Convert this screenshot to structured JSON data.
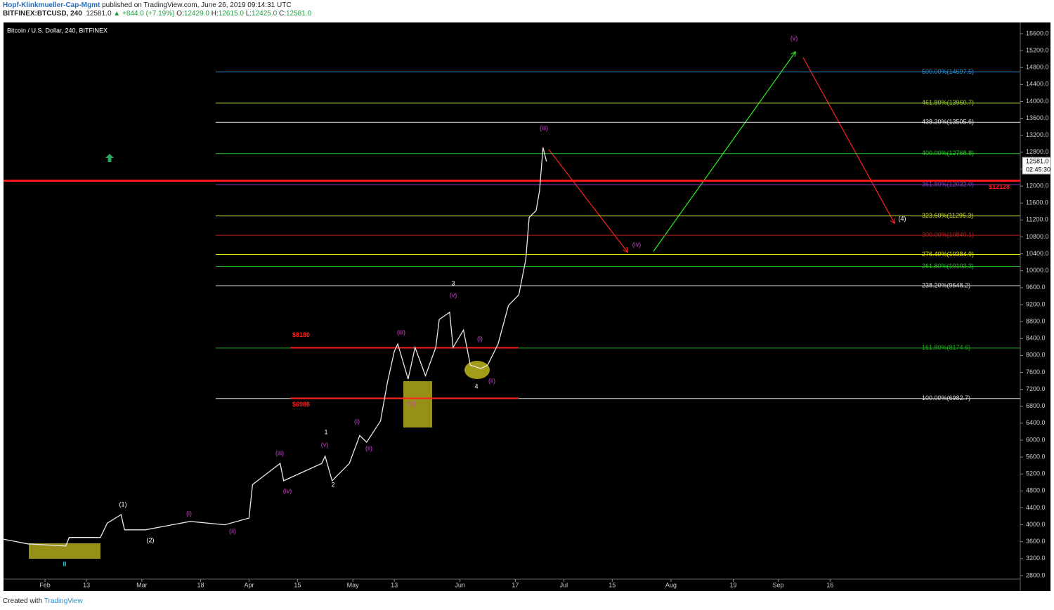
{
  "header": {
    "author": "Hopf-Klinkmueller-Cap-Mgmt",
    "published": "published on TradingView.com, June 26, 2019 09:14:31 UTC",
    "symbol": "BITFINEX:BTCUSD, 240",
    "last": "12581.0",
    "change": "▲ +844.0 (+7.19%)",
    "ohlc": [
      {
        "label": "O:",
        "value": "12429.0"
      },
      {
        "label": "H:",
        "value": "12615.0"
      },
      {
        "label": "L:",
        "value": "12425.0"
      },
      {
        "label": "C:",
        "value": "12581.0"
      }
    ]
  },
  "footer": {
    "created": "Created with",
    "brand": "TradingView"
  },
  "chart_data": {
    "type": "line",
    "title": "Bitcoin / U.S. Dollar, 240, BITFINEX",
    "color": "#e8e8e8",
    "x": [
      "01-20",
      "01-27",
      "02-07",
      "02-08",
      "02-17",
      "02-19",
      "02-23",
      "02-24",
      "03-02",
      "03-15",
      "03-25",
      "04-01",
      "04-02",
      "04-10",
      "04-11",
      "04-22",
      "04-23",
      "04-25",
      "04-30",
      "05-03",
      "05-05",
      "05-09",
      "05-11",
      "05-13",
      "05-14",
      "05-17",
      "05-19",
      "05-22",
      "05-25",
      "05-26",
      "05-29",
      "05-30",
      "06-02",
      "06-04",
      "06-07",
      "06-09",
      "06-12",
      "06-15",
      "06-18",
      "06-20",
      "06-21",
      "06-23",
      "06-24",
      "06-25",
      "06-26"
    ],
    "values": [
      3660,
      3550,
      3500,
      3700,
      3700,
      4040,
      4240,
      3880,
      3880,
      4080,
      4000,
      4160,
      4950,
      5450,
      5040,
      5450,
      5620,
      5040,
      5450,
      6110,
      5950,
      6450,
      7360,
      8100,
      8270,
      7440,
      8190,
      7520,
      8190,
      8850,
      9020,
      8190,
      8600,
      7770,
      7690,
      7770,
      8270,
      9180,
      9430,
      10260,
      11260,
      11420,
      11900,
      12910,
      12581
    ],
    "xlim": [
      "01-20",
      "11-10"
    ],
    "ylim": [
      2435,
      15865
    ],
    "xticks": [
      {
        "value": "02-01",
        "label": "Feb"
      },
      {
        "value": "02-13",
        "label": "13"
      },
      {
        "value": "03-01",
        "label": "Mar"
      },
      {
        "value": "03-18",
        "label": "18"
      },
      {
        "value": "04-01",
        "label": "Apr"
      },
      {
        "value": "04-15",
        "label": "15"
      },
      {
        "value": "05-01",
        "label": "May"
      },
      {
        "value": "05-13",
        "label": "13"
      },
      {
        "value": "06-01",
        "label": "Jun"
      },
      {
        "value": "06-17",
        "label": "17"
      },
      {
        "value": "07-01",
        "label": "Jul"
      },
      {
        "value": "07-15",
        "label": "15"
      },
      {
        "value": "08-01",
        "label": "Aug"
      },
      {
        "value": "08-19",
        "label": "19"
      },
      {
        "value": "09-01",
        "label": "Sep"
      },
      {
        "value": "09-16",
        "label": "16"
      }
    ],
    "yticks": [
      {
        "value": 2800,
        "label": "2800.0"
      },
      {
        "value": 3200,
        "label": "3200.0"
      },
      {
        "value": 3600,
        "label": "3600.0"
      },
      {
        "value": 4000,
        "label": "4000.0"
      },
      {
        "value": 4400,
        "label": "4400.0"
      },
      {
        "value": 4800,
        "label": "4800.0"
      },
      {
        "value": 5200,
        "label": "5200.0"
      },
      {
        "value": 5600,
        "label": "5600.0"
      },
      {
        "value": 6000,
        "label": "6000.0"
      },
      {
        "value": 6400,
        "label": "6400.0"
      },
      {
        "value": 6800,
        "label": "6800.0"
      },
      {
        "value": 7200,
        "label": "7200.0"
      },
      {
        "value": 7600,
        "label": "7600.0"
      },
      {
        "value": 8000,
        "label": "8000.0"
      },
      {
        "value": 8400,
        "label": "8400.0"
      },
      {
        "value": 8800,
        "label": "8800.0"
      },
      {
        "value": 9200,
        "label": "9200.0"
      },
      {
        "value": 9600,
        "label": "9600.0"
      },
      {
        "value": 10000,
        "label": "10000.0"
      },
      {
        "value": 10400,
        "label": "10400.0"
      },
      {
        "value": 10800,
        "label": "10800.0"
      },
      {
        "value": 11200,
        "label": "11200.0"
      },
      {
        "value": 11600,
        "label": "11600.0"
      },
      {
        "value": 12000,
        "label": "12000.0"
      },
      {
        "value": 12400,
        "label": "12400.0"
      },
      {
        "value": 12800,
        "label": "12800.0"
      },
      {
        "value": 13200,
        "label": "13200.0"
      },
      {
        "value": 13600,
        "label": "13600.0"
      },
      {
        "value": 14000,
        "label": "14000.0"
      },
      {
        "value": 14400,
        "label": "14400.0"
      },
      {
        "value": 14800,
        "label": "14800.0"
      },
      {
        "value": 15200,
        "label": "15200.0"
      },
      {
        "value": 15600,
        "label": "15600.0"
      }
    ],
    "fib_levels": [
      {
        "value": 14697.5,
        "label": "500.00%(14697.5)",
        "color": "#2a8fd0"
      },
      {
        "value": 13960.7,
        "label": "461.80%(13960.7)",
        "color": "#9acd32"
      },
      {
        "value": 13505.6,
        "label": "438.20%(13505.6)",
        "color": "#e0e0e0"
      },
      {
        "value": 12768.8,
        "label": "400.00%(12768.8)",
        "color": "#22cc22"
      },
      {
        "value": 12032.0,
        "label": "361.80%(12032.0)",
        "color": "#7a3fc0"
      },
      {
        "value": 11295.3,
        "label": "323.60%(11295.3)",
        "color": "#c8d830"
      },
      {
        "value": 10840.1,
        "label": "300.00%(10840.1)",
        "color": "#b02020"
      },
      {
        "value": 10384.9,
        "label": "276.40%(10384.9)",
        "color": "#e6e600"
      },
      {
        "value": 10103.3,
        "label": "261.80%(10103.3)",
        "color": "#22b822"
      },
      {
        "value": 9648.2,
        "label": "238.20%(9648.2)",
        "color": "#d8d8d8"
      },
      {
        "value": 8174.6,
        "label": "161.80%(8174.6)",
        "color": "#22aa22"
      },
      {
        "value": 6982.7,
        "label": "100.00%(6982.7)",
        "color": "#d8d8d8"
      }
    ],
    "key_level": {
      "value": 12128,
      "label": "$12128",
      "color": "#ff1a1a"
    },
    "range_levels": [
      {
        "value": 8180,
        "label": "$8180"
      },
      {
        "value": 6988,
        "label": "$6988"
      }
    ],
    "last_price": {
      "value": 12581,
      "label": "12581.0",
      "countdown": "02:45:30"
    },
    "annotations": [
      {
        "text": "(1)",
        "color": "#ffffff"
      },
      {
        "text": "(2)",
        "color": "#ffffff"
      },
      {
        "text": "(i)",
        "color": "#d040d0"
      },
      {
        "text": "(ii)",
        "color": "#d040d0"
      },
      {
        "text": "(iii)",
        "color": "#d040d0"
      },
      {
        "text": "(iv)",
        "color": "#d040d0"
      },
      {
        "text": "1",
        "color": "#ffffff"
      },
      {
        "text": "(v)",
        "color": "#d040d0"
      },
      {
        "text": "2",
        "color": "#ffffff"
      },
      {
        "text": "(i)",
        "color": "#d040d0"
      },
      {
        "text": "(ii)",
        "color": "#d040d0"
      },
      {
        "text": "(iii)",
        "color": "#d040d0"
      },
      {
        "text": "(iv)",
        "color": "#d040d0"
      },
      {
        "text": "3",
        "color": "#ffffff"
      },
      {
        "text": "(v)",
        "color": "#d040d0"
      },
      {
        "text": "(i)",
        "color": "#d040d0"
      },
      {
        "text": "4",
        "color": "#ffffff"
      },
      {
        "text": "(ii)",
        "color": "#d040d0"
      },
      {
        "text": "(iii)",
        "color": "#d040d0"
      },
      {
        "text": "(iv)",
        "color": "#d040d0"
      },
      {
        "text": "(v)",
        "color": "#d040d0"
      },
      {
        "text": "(4)",
        "color": "#ffffff"
      },
      {
        "text": "II",
        "color": "#22c8e0"
      }
    ]
  }
}
